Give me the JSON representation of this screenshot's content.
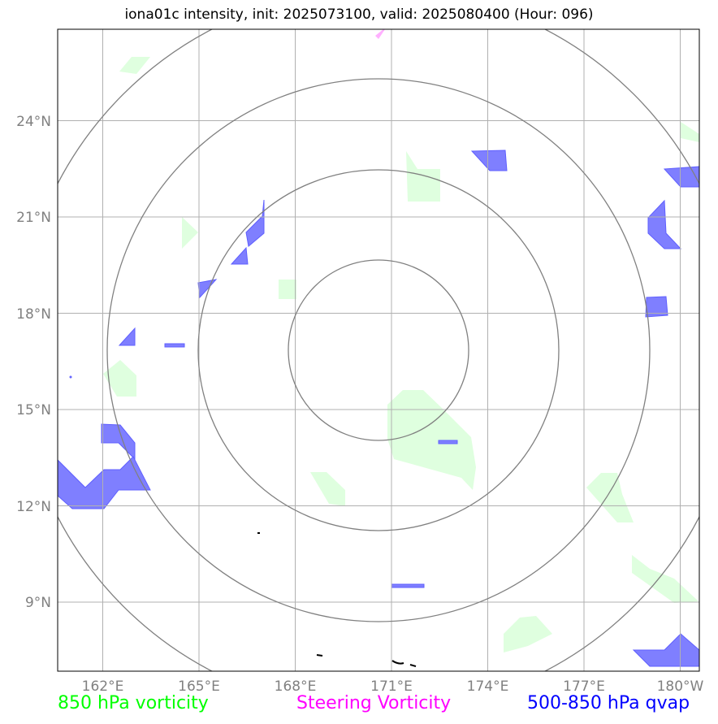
{
  "title": "iona01c intensity, init: 2025073100, valid: 2025080400 (Hour: 096)",
  "axes": {
    "lon_labels": [
      "162°E",
      "165°E",
      "168°E",
      "171°E",
      "174°E",
      "177°E",
      "180°W"
    ],
    "lat_labels": [
      "24°N",
      "21°N",
      "18°N",
      "15°N",
      "12°N",
      "9°N"
    ]
  },
  "legend": {
    "vorticity_850": "850 hPa vorticity",
    "steering_vorticity": "Steering Vorticity",
    "qvap_500_850": "500-850 hPa qvap"
  },
  "colors": {
    "vorticity_850": "#00ff00",
    "steering_vorticity": "#ff00ff",
    "qvap_500_850": "#0000ff",
    "vorticity_fill": "#dfffdf",
    "qvap_fill": "#7f7fff",
    "steering_fill": "#ffb0ff",
    "grid": "#b0b0b0",
    "range_rings": "#808080",
    "tick_labels": "#808080"
  },
  "map": {
    "lon_range": [
      160.6,
      180.6
    ],
    "lat_range": [
      6.8,
      26.8
    ],
    "grid_lons": [
      162,
      165,
      168,
      171,
      174,
      177,
      180
    ],
    "grid_lats": [
      24,
      21,
      18,
      15,
      12,
      9
    ],
    "center": {
      "lon": 170.5,
      "lat": 16.9
    }
  }
}
